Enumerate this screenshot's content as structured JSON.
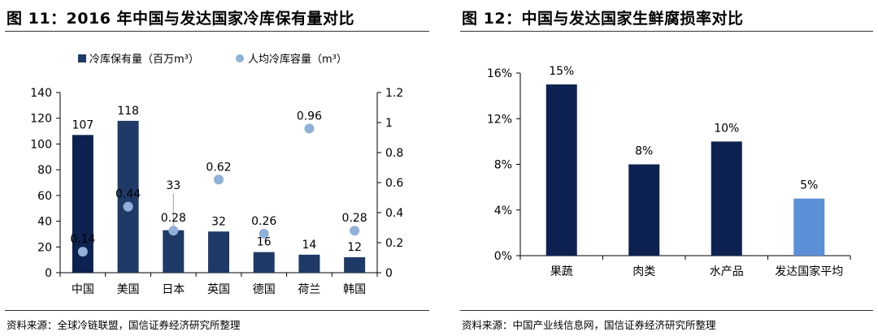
{
  "figures": [
    {
      "title": "图 11：2016 年中国与发达国家冷库保有量对比",
      "source": "资料来源：全球冷链联盟，国信证券经济研究所整理"
    },
    {
      "title": "图 12：中国与发达国家生鲜腐损率对比",
      "source": "资料来源：中国产业线信息网，国信证券经济研究所整理"
    }
  ],
  "chart_data": [
    {
      "type": "bar",
      "combo": "bar + scatter (secondary axis)",
      "categories": [
        "中国",
        "美国",
        "日本",
        "英国",
        "德国",
        "荷兰",
        "韩国"
      ],
      "series": [
        {
          "name": "冷库保有量（百万m³）",
          "kind": "bar",
          "axis": "left",
          "color": "#1f3a66",
          "values": [
            107,
            118,
            33,
            32,
            16,
            14,
            12
          ],
          "labels": [
            "107",
            "118",
            "33",
            "32",
            "16",
            "14",
            "12"
          ]
        },
        {
          "name": "人均冷库容量（m³）",
          "kind": "scatter",
          "axis": "right",
          "color": "#8fb0d8",
          "values": [
            0.14,
            0.44,
            0.28,
            0.62,
            0.26,
            0.96,
            0.28
          ],
          "labels": [
            "0.14",
            "0.44",
            "0.28",
            "0.62",
            "0.26",
            "0.96",
            "0.28"
          ]
        }
      ],
      "yleft": {
        "min": 0,
        "max": 140,
        "ticks": [
          "0",
          "20",
          "40",
          "60",
          "80",
          "100",
          "120",
          "140"
        ]
      },
      "yright": {
        "min": 0,
        "max": 1.2,
        "ticks": [
          "0",
          "0.2",
          "0.4",
          "0.6",
          "0.8",
          "1",
          "1.2"
        ]
      },
      "grid": false,
      "legend": "top"
    },
    {
      "type": "bar",
      "categories": [
        "果蔬",
        "肉类",
        "水产品",
        "发达国家平均"
      ],
      "values": [
        15,
        8,
        10,
        5
      ],
      "labels": [
        "15%",
        "8%",
        "10%",
        "5%"
      ],
      "colors": [
        "#0d2250",
        "#0d2250",
        "#0d2250",
        "#5b8fd6"
      ],
      "yaxis": {
        "min": 0,
        "max": 16,
        "ticks": [
          "0%",
          "4%",
          "8%",
          "12%",
          "16%"
        ]
      },
      "grid": false,
      "legend": "none"
    }
  ]
}
